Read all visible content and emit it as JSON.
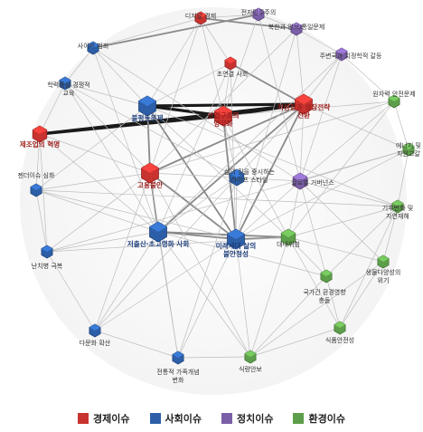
{
  "categories": [
    {
      "id": "econ",
      "label": "경제이슈",
      "color": "#c8332f"
    },
    {
      "id": "soc",
      "label": "사회이슈",
      "color": "#2d5fa8"
    },
    {
      "id": "pol",
      "label": "정치이슈",
      "color": "#7b5ea8"
    },
    {
      "id": "env",
      "label": "환경이슈",
      "color": "#5d9e4a"
    }
  ],
  "nodes": [
    {
      "id": "digital",
      "lines": [
        "디지털 경제"
      ],
      "cat": "econ",
      "size": "s",
      "hl": false
    },
    {
      "id": "democracy",
      "lines": [
        "전자민주주의"
      ],
      "cat": "pol",
      "size": "s",
      "hl": false
    },
    {
      "id": "nk",
      "lines": [
        "북한과 안보/통일문제"
      ],
      "cat": "pol",
      "size": "s",
      "hl": false
    },
    {
      "id": "cyber",
      "lines": [
        "사이버 범죄"
      ],
      "cat": "soc",
      "size": "s",
      "hl": false
    },
    {
      "id": "neighbor",
      "lines": [
        "주변국과 지정학적 갈등"
      ],
      "cat": "pol",
      "size": "s",
      "hl": false
    },
    {
      "id": "aging",
      "lines": [
        "초연결 사회"
      ],
      "cat": "econ",
      "size": "s",
      "hl": false
    },
    {
      "id": "edu",
      "lines": [
        "학력중심 경쟁적",
        "교육"
      ],
      "cat": "soc",
      "size": "s",
      "hl": false
    },
    {
      "id": "nuclear",
      "lines": [
        "원자력 안전문제"
      ],
      "cat": "env",
      "size": "s",
      "hl": false
    },
    {
      "id": "inequality",
      "lines": [
        "불평등문제"
      ],
      "cat": "soc",
      "size": "l",
      "hl": true
    },
    {
      "id": "industry",
      "lines": [
        "산업구조의",
        "양극화"
      ],
      "cat": "econ",
      "size": "l",
      "hl": true
    },
    {
      "id": "growth",
      "lines": [
        "저성장과 성장전략",
        "전환"
      ],
      "cat": "econ",
      "size": "l",
      "hl": true
    },
    {
      "id": "manuf",
      "lines": [
        "제조업의 혁명"
      ],
      "cat": "econ",
      "size": "m",
      "hl": true
    },
    {
      "id": "energy",
      "lines": [
        "에너지 및",
        "자원고갈"
      ],
      "cat": "env",
      "size": "s",
      "hl": false
    },
    {
      "id": "employ",
      "lines": [
        "고용불안"
      ],
      "cat": "econ",
      "size": "l",
      "hl": true
    },
    {
      "id": "quality",
      "lines": [
        "삶의 질을 중시하는",
        "라이프 스타일"
      ],
      "cat": "soc",
      "size": "m",
      "hl": false
    },
    {
      "id": "global",
      "lines": [
        "글로벌 거버넌스"
      ],
      "cat": "pol",
      "size": "m",
      "hl": false
    },
    {
      "id": "gender",
      "lines": [
        "젠더이슈 심화"
      ],
      "cat": "soc",
      "size": "s",
      "hl": false
    },
    {
      "id": "climate",
      "lines": [
        "기후변화 및",
        "자연재해"
      ],
      "cat": "env",
      "size": "s",
      "hl": false
    },
    {
      "id": "lowbirth",
      "lines": [
        "저출산·초고령화 사회"
      ],
      "cat": "soc",
      "size": "l",
      "hl": true
    },
    {
      "id": "future",
      "lines": [
        "미래세대 삶의",
        "불안정성"
      ],
      "cat": "soc",
      "size": "l",
      "hl": true
    },
    {
      "id": "conflict",
      "lines": [
        "대내위험"
      ],
      "cat": "env",
      "size": "m",
      "hl": false
    },
    {
      "id": "poverty",
      "lines": [
        "난치병 극복"
      ],
      "cat": "soc",
      "size": "s",
      "hl": false
    },
    {
      "id": "hazard",
      "lines": [
        "국가간 환경영향",
        "충돌"
      ],
      "cat": "env",
      "size": "s",
      "hl": false
    },
    {
      "id": "bio",
      "lines": [
        "생물다양성의",
        "위기"
      ],
      "cat": "env",
      "size": "s",
      "hl": false
    },
    {
      "id": "multi",
      "lines": [
        "다문화 확산"
      ],
      "cat": "soc",
      "size": "s",
      "hl": false
    },
    {
      "id": "food",
      "lines": [
        "식품안전성"
      ],
      "cat": "env",
      "size": "s",
      "hl": false
    },
    {
      "id": "family",
      "lines": [
        "전통적 가족개념",
        "변화"
      ],
      "cat": "soc",
      "size": "s",
      "hl": false
    },
    {
      "id": "foodsec",
      "lines": [
        "식량안보"
      ],
      "cat": "env",
      "size": "s",
      "hl": false
    }
  ],
  "edges": [
    {
      "a": "manuf",
      "b": "growth",
      "w": 3
    },
    {
      "a": "manuf",
      "b": "industry",
      "w": 3
    },
    {
      "a": "inequality",
      "b": "industry",
      "w": 3
    },
    {
      "a": "inequality",
      "b": "growth",
      "w": 3
    },
    {
      "a": "industry",
      "b": "growth",
      "w": 3
    },
    {
      "a": "growth",
      "b": "lowbirth",
      "w": 2
    },
    {
      "a": "growth",
      "b": "employ",
      "w": 2
    },
    {
      "a": "employ",
      "b": "lowbirth",
      "w": 2
    },
    {
      "a": "employ",
      "b": "future",
      "w": 2
    },
    {
      "a": "inequality",
      "b": "future",
      "w": 2
    },
    {
      "a": "lowbirth",
      "b": "future",
      "w": 2
    },
    {
      "a": "lowbirth",
      "b": "conflict",
      "w": 2
    },
    {
      "a": "future",
      "b": "conflict",
      "w": 2
    },
    {
      "a": "digital",
      "b": "nk",
      "w": 2
    },
    {
      "a": "cyber",
      "b": "democracy",
      "w": 2
    },
    {
      "a": "aging",
      "b": "growth",
      "w": 2
    },
    {
      "a": "industry",
      "b": "future",
      "w": 2
    },
    {
      "a": "inequality",
      "b": "employ",
      "w": 2
    },
    {
      "a": "growth",
      "b": "future",
      "w": 2
    },
    {
      "a": "digital",
      "b": "cyber",
      "w": 1
    },
    {
      "a": "digital",
      "b": "democracy",
      "w": 1
    },
    {
      "a": "digital",
      "b": "aging",
      "w": 1
    },
    {
      "a": "democracy",
      "b": "nk",
      "w": 1
    },
    {
      "a": "nk",
      "b": "neighbor",
      "w": 1
    },
    {
      "a": "neighbor",
      "b": "nuclear",
      "w": 1
    },
    {
      "a": "nuclear",
      "b": "energy",
      "w": 1
    },
    {
      "a": "energy",
      "b": "climate",
      "w": 1
    },
    {
      "a": "climate",
      "b": "bio",
      "w": 1
    },
    {
      "a": "bio",
      "b": "food",
      "w": 1
    },
    {
      "a": "food",
      "b": "foodsec",
      "w": 1
    },
    {
      "a": "foodsec",
      "b": "family",
      "w": 1
    },
    {
      "a": "family",
      "b": "multi",
      "w": 1
    },
    {
      "a": "multi",
      "b": "poverty",
      "w": 1
    },
    {
      "a": "poverty",
      "b": "gender",
      "w": 1
    },
    {
      "a": "gender",
      "b": "manuf",
      "w": 1
    },
    {
      "a": "manuf",
      "b": "edu",
      "w": 1
    },
    {
      "a": "edu",
      "b": "cyber",
      "w": 1
    },
    {
      "a": "cyber",
      "b": "inequality",
      "w": 1
    },
    {
      "a": "edu",
      "b": "inequality",
      "w": 1
    },
    {
      "a": "aging",
      "b": "industry",
      "w": 1
    },
    {
      "a": "aging",
      "b": "inequality",
      "w": 1
    },
    {
      "a": "nk",
      "b": "growth",
      "w": 1
    },
    {
      "a": "neighbor",
      "b": "growth",
      "w": 1
    },
    {
      "a": "nuclear",
      "b": "global",
      "w": 1
    },
    {
      "a": "energy",
      "b": "global",
      "w": 1
    },
    {
      "a": "climate",
      "b": "conflict",
      "w": 1
    },
    {
      "a": "climate",
      "b": "hazard",
      "w": 1
    },
    {
      "a": "climate",
      "b": "global",
      "w": 1
    },
    {
      "a": "bio",
      "b": "conflict",
      "w": 1
    },
    {
      "a": "hazard",
      "b": "conflict",
      "w": 1
    },
    {
      "a": "hazard",
      "b": "food",
      "w": 1
    },
    {
      "a": "food",
      "b": "conflict",
      "w": 1
    },
    {
      "a": "foodsec",
      "b": "conflict",
      "w": 1
    },
    {
      "a": "foodsec",
      "b": "future",
      "w": 1
    },
    {
      "a": "family",
      "b": "lowbirth",
      "w": 1
    },
    {
      "a": "multi",
      "b": "lowbirth",
      "w": 1
    },
    {
      "a": "poverty",
      "b": "lowbirth",
      "w": 1
    },
    {
      "a": "poverty",
      "b": "employ",
      "w": 1
    },
    {
      "a": "gender",
      "b": "employ",
      "w": 1
    },
    {
      "a": "gender",
      "b": "inequality",
      "w": 1
    },
    {
      "a": "employ",
      "b": "quality",
      "w": 1
    },
    {
      "a": "quality",
      "b": "future",
      "w": 1
    },
    {
      "a": "quality",
      "b": "global",
      "w": 1
    },
    {
      "a": "global",
      "b": "growth",
      "w": 1
    },
    {
      "a": "global",
      "b": "future",
      "w": 1
    },
    {
      "a": "global",
      "b": "conflict",
      "w": 1
    },
    {
      "a": "quality",
      "b": "industry",
      "w": 1
    },
    {
      "a": "quality",
      "b": "lowbirth",
      "w": 1
    },
    {
      "a": "democracy",
      "b": "global",
      "w": 1
    },
    {
      "a": "cyber",
      "b": "global",
      "w": 1
    },
    {
      "a": "edu",
      "b": "quality",
      "w": 1
    },
    {
      "a": "edu",
      "b": "lowbirth",
      "w": 1
    },
    {
      "a": "manuf",
      "b": "employ",
      "w": 1
    },
    {
      "a": "manuf",
      "b": "lowbirth",
      "w": 1
    },
    {
      "a": "manuf",
      "b": "poverty",
      "w": 1
    },
    {
      "a": "gender",
      "b": "future",
      "w": 1
    },
    {
      "a": "gender",
      "b": "climate",
      "w": 1
    },
    {
      "a": "poverty",
      "b": "conflict",
      "w": 1
    },
    {
      "a": "poverty",
      "b": "energy",
      "w": 1
    },
    {
      "a": "multi",
      "b": "future",
      "w": 1
    },
    {
      "a": "multi",
      "b": "quality",
      "w": 1
    },
    {
      "a": "family",
      "b": "future",
      "w": 1
    },
    {
      "a": "family",
      "b": "quality",
      "w": 1
    },
    {
      "a": "foodsec",
      "b": "employ",
      "w": 1
    },
    {
      "a": "foodsec",
      "b": "lowbirth",
      "w": 1
    },
    {
      "a": "hazard",
      "b": "global",
      "w": 1
    },
    {
      "a": "hazard",
      "b": "lowbirth",
      "w": 1
    },
    {
      "a": "bio",
      "b": "global",
      "w": 1
    },
    {
      "a": "nuclear",
      "b": "industry",
      "w": 1
    },
    {
      "a": "nuclear",
      "b": "employ",
      "w": 1
    },
    {
      "a": "nuclear",
      "b": "conflict",
      "w": 1
    },
    {
      "a": "energy",
      "b": "growth",
      "w": 1
    },
    {
      "a": "energy",
      "b": "future",
      "w": 1
    },
    {
      "a": "neighbor",
      "b": "global",
      "w": 1
    },
    {
      "a": "neighbor",
      "b": "lowbirth",
      "w": 1
    },
    {
      "a": "nk",
      "b": "future",
      "w": 1
    },
    {
      "a": "nk",
      "b": "employ",
      "w": 1
    },
    {
      "a": "democracy",
      "b": "industry",
      "w": 1
    },
    {
      "a": "digital",
      "b": "industry",
      "w": 1
    },
    {
      "a": "digital",
      "b": "employ",
      "w": 1
    },
    {
      "a": "digital",
      "b": "inequality",
      "w": 1
    },
    {
      "a": "cyber",
      "b": "lowbirth",
      "w": 1
    },
    {
      "a": "aging",
      "b": "future",
      "w": 1
    },
    {
      "a": "aging",
      "b": "lowbirth",
      "w": 1
    },
    {
      "a": "edu",
      "b": "employ",
      "w": 1
    },
    {
      "a": "growth",
      "b": "quality",
      "w": 1
    },
    {
      "a": "industry",
      "b": "conflict",
      "w": 1
    },
    {
      "a": "inequality",
      "b": "conflict",
      "w": 1
    },
    {
      "a": "inequality",
      "b": "climate",
      "w": 1
    },
    {
      "a": "bio",
      "b": "foodsec",
      "w": 1
    },
    {
      "a": "hazard",
      "b": "foodsec",
      "w": 1
    },
    {
      "a": "climate",
      "b": "food",
      "w": 1
    },
    {
      "a": "family",
      "b": "employ",
      "w": 1
    },
    {
      "a": "multi",
      "b": "employ",
      "w": 1
    },
    {
      "a": "gender",
      "b": "lowbirth",
      "w": 1
    }
  ]
}
